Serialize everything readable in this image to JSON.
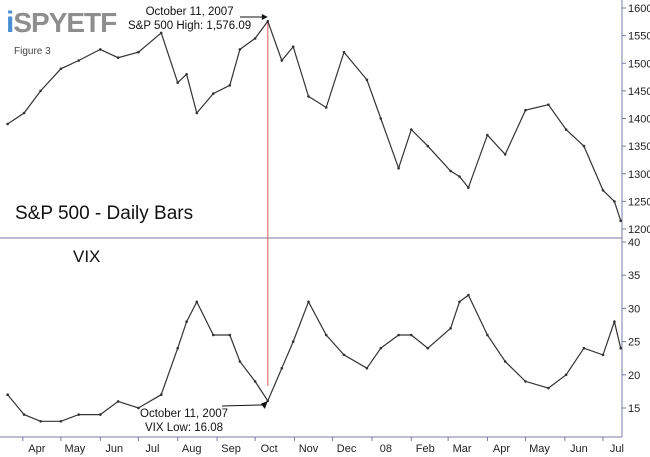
{
  "brand": {
    "i": "i",
    "rest": "SPYETF"
  },
  "figure_label": "Figure 3",
  "chart_data": [
    {
      "type": "line",
      "title": "S&P 500 - Daily Bars",
      "ylim": [
        1195,
        1610
      ],
      "y_ticks": [
        "1600",
        "1550",
        "1500",
        "1450",
        "1400",
        "1350",
        "1300",
        "1250",
        "1200"
      ],
      "x_months": [
        "Apr",
        "May",
        "Jun",
        "Jul",
        "Aug",
        "Sep",
        "Oct",
        "Nov",
        "Dec",
        "08",
        "Feb",
        "Mar",
        "Apr",
        "May",
        "Jun",
        "Jul"
      ],
      "x": [
        "2007-03-20",
        "2007-04-02",
        "2007-04-15",
        "2007-05-01",
        "2007-05-15",
        "2007-06-01",
        "2007-06-15",
        "2007-07-01",
        "2007-07-19",
        "2007-08-01",
        "2007-08-08",
        "2007-08-16",
        "2007-08-29",
        "2007-09-11",
        "2007-09-19",
        "2007-10-01",
        "2007-10-11",
        "2007-10-22",
        "2007-10-31",
        "2007-11-12",
        "2007-11-26",
        "2007-12-10",
        "2007-12-28",
        "2008-01-08",
        "2008-01-22",
        "2008-02-01",
        "2008-02-14",
        "2008-03-03",
        "2008-03-10",
        "2008-03-17",
        "2008-04-01",
        "2008-04-15",
        "2008-05-01",
        "2008-05-19",
        "2008-06-02",
        "2008-06-16",
        "2008-07-01",
        "2008-07-10",
        "2008-07-15"
      ],
      "series": [
        {
          "values": [
            1390,
            1410,
            1450,
            1490,
            1505,
            1525,
            1510,
            1520,
            1555,
            1465,
            1480,
            1410,
            1445,
            1460,
            1525,
            1545,
            1576,
            1505,
            1530,
            1440,
            1420,
            1520,
            1470,
            1400,
            1310,
            1380,
            1350,
            1305,
            1295,
            1275,
            1370,
            1335,
            1415,
            1425,
            1380,
            1350,
            1270,
            1250,
            1215
          ]
        }
      ],
      "annotation_high": {
        "date": "October 11, 2007",
        "label": "S&P 500 High: 1,576.09"
      }
    },
    {
      "type": "line",
      "title": "VIX",
      "ylim": [
        11,
        42
      ],
      "y_ticks": [
        "40",
        "35",
        "30",
        "25",
        "20",
        "15"
      ],
      "x": [
        "2007-03-20",
        "2007-04-02",
        "2007-04-15",
        "2007-05-01",
        "2007-05-15",
        "2007-06-01",
        "2007-06-15",
        "2007-07-01",
        "2007-07-19",
        "2007-08-01",
        "2007-08-08",
        "2007-08-16",
        "2007-08-29",
        "2007-09-11",
        "2007-09-19",
        "2007-10-01",
        "2007-10-11",
        "2007-10-22",
        "2007-10-31",
        "2007-11-12",
        "2007-11-26",
        "2007-12-10",
        "2007-12-28",
        "2008-01-08",
        "2008-01-22",
        "2008-02-01",
        "2008-02-14",
        "2008-03-03",
        "2008-03-10",
        "2008-03-17",
        "2008-04-01",
        "2008-04-15",
        "2008-05-01",
        "2008-05-19",
        "2008-06-02",
        "2008-06-16",
        "2008-07-01",
        "2008-07-10",
        "2008-07-15"
      ],
      "series": [
        {
          "values": [
            17,
            14,
            13,
            13,
            14,
            14,
            16,
            15,
            17,
            24,
            28,
            31,
            26,
            26,
            22,
            19,
            16.08,
            21,
            25,
            31,
            26,
            23,
            21,
            24,
            26,
            26,
            24,
            27,
            31,
            32,
            26,
            22,
            19,
            18,
            20,
            24,
            23,
            28,
            24
          ]
        }
      ],
      "annotation_low": {
        "date": "October 11, 2007",
        "label": "VIX Low: 16.08"
      }
    }
  ],
  "colors": {
    "price_line": "#333333",
    "marker_line": "#e0565b",
    "axis": "#7a7aa6",
    "logo_blue": "#4a8fd6",
    "logo_grey": "#8e8e8e"
  }
}
